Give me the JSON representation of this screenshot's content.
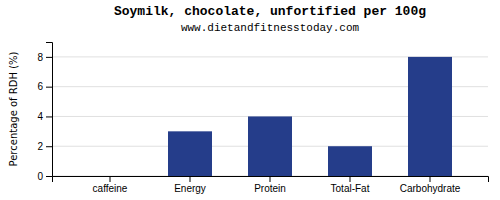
{
  "chart_data": {
    "type": "bar",
    "title": "Soymilk, chocolate, unfortified per 100g",
    "subtitle": "www.dietandfitnesstoday.com",
    "categories": [
      "caffeine",
      "Energy",
      "Protein",
      "Total-Fat",
      "Carbohydrate"
    ],
    "values": [
      0,
      3,
      4,
      2,
      8
    ],
    "color": "#253d8a",
    "ylabel": "Percentage of RDH (%)",
    "ylim": [
      0,
      9
    ],
    "yticks": [
      0,
      2,
      4,
      6,
      8
    ],
    "grid": true
  }
}
